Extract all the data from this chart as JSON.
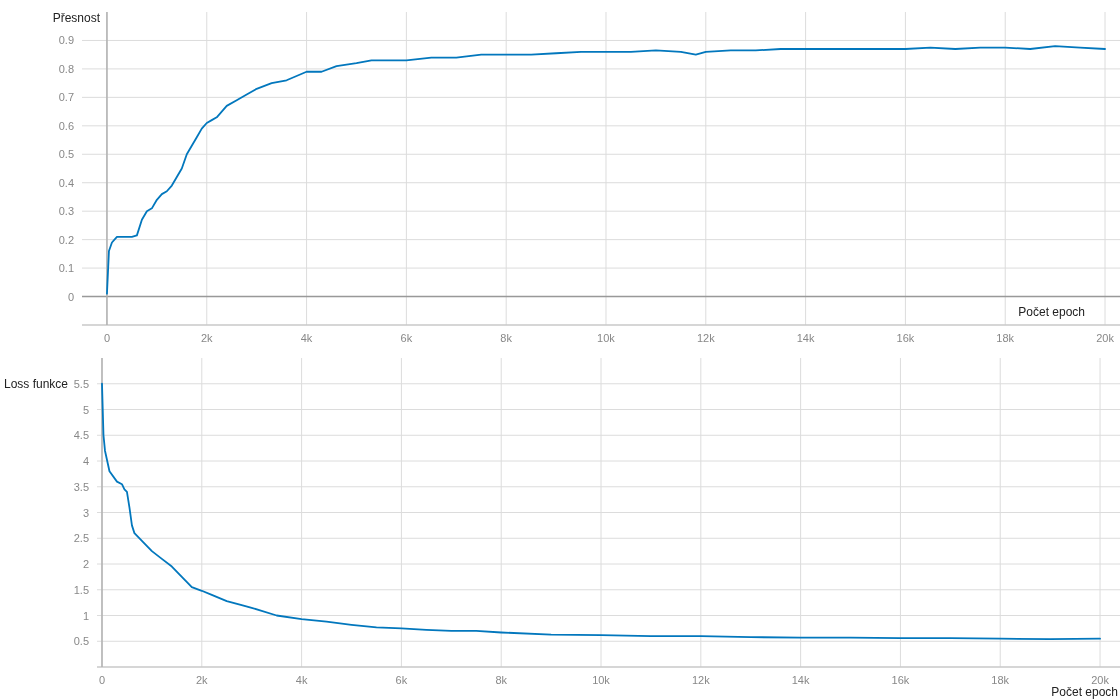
{
  "chart_data": [
    {
      "type": "line",
      "ylabel": "Přesnost",
      "xlabel": "Počet epoch",
      "xlim": [
        -500,
        20300
      ],
      "ylim": [
        -0.1,
        1.0
      ],
      "xticks": [
        0,
        {
          "value": 2000,
          "label": "2k"
        },
        {
          "value": 4000,
          "label": "4k"
        },
        {
          "value": 6000,
          "label": "6k"
        },
        {
          "value": 8000,
          "label": "8k"
        },
        {
          "value": 10000,
          "label": "10k"
        },
        {
          "value": 12000,
          "label": "12k"
        },
        {
          "value": 14000,
          "label": "14k"
        },
        {
          "value": 16000,
          "label": "16k"
        },
        {
          "value": 18000,
          "label": "18k"
        },
        {
          "value": 20000,
          "label": "20k"
        }
      ],
      "yticks": [
        0,
        0.1,
        0.2,
        0.3,
        0.4,
        0.5,
        0.6,
        0.7,
        0.8,
        0.9
      ],
      "grid": true,
      "marker": "none",
      "line_style": "solid",
      "series": [
        {
          "color": "#0277bd",
          "x": [
            0,
            40,
            100,
            200,
            300,
            400,
            500,
            600,
            700,
            800,
            900,
            1000,
            1100,
            1200,
            1300,
            1400,
            1500,
            1600,
            1700,
            1800,
            1900,
            2000,
            2100,
            2200,
            2400,
            2600,
            2800,
            3000,
            3300,
            3600,
            4000,
            4300,
            4600,
            5000,
            5300,
            5600,
            6000,
            6500,
            7000,
            7500,
            8000,
            8500,
            9000,
            9500,
            10000,
            10500,
            11000,
            11500,
            11800,
            12000,
            12500,
            13000,
            13500,
            14000,
            14500,
            15000,
            15500,
            16000,
            16500,
            17000,
            17500,
            18000,
            18500,
            19000,
            19500,
            20000
          ],
          "values": [
            0.01,
            0.16,
            0.19,
            0.21,
            0.21,
            0.21,
            0.21,
            0.215,
            0.27,
            0.3,
            0.31,
            0.34,
            0.36,
            0.37,
            0.39,
            0.42,
            0.45,
            0.5,
            0.53,
            0.56,
            0.59,
            0.61,
            0.62,
            0.63,
            0.67,
            0.69,
            0.71,
            0.73,
            0.75,
            0.76,
            0.79,
            0.79,
            0.81,
            0.82,
            0.83,
            0.83,
            0.83,
            0.84,
            0.84,
            0.85,
            0.85,
            0.85,
            0.855,
            0.86,
            0.86,
            0.86,
            0.865,
            0.86,
            0.85,
            0.86,
            0.865,
            0.865,
            0.87,
            0.87,
            0.87,
            0.87,
            0.87,
            0.87,
            0.875,
            0.87,
            0.875,
            0.875,
            0.87,
            0.88,
            0.875,
            0.87
          ]
        }
      ]
    },
    {
      "type": "line",
      "ylabel": "Loss funkce",
      "xlabel": "Počet epoch",
      "xlim": [
        -100,
        20400
      ],
      "ylim": [
        0,
        6
      ],
      "xticks": [
        0,
        {
          "value": 2000,
          "label": "2k"
        },
        {
          "value": 4000,
          "label": "4k"
        },
        {
          "value": 6000,
          "label": "6k"
        },
        {
          "value": 8000,
          "label": "8k"
        },
        {
          "value": 10000,
          "label": "10k"
        },
        {
          "value": 12000,
          "label": "12k"
        },
        {
          "value": 14000,
          "label": "14k"
        },
        {
          "value": 16000,
          "label": "16k"
        },
        {
          "value": 18000,
          "label": "18k"
        },
        {
          "value": 20000,
          "label": "20k"
        }
      ],
      "yticks": [
        0.5,
        1,
        1.5,
        2,
        2.5,
        3,
        3.5,
        4,
        4.5,
        5,
        5.5
      ],
      "grid": true,
      "marker": "none",
      "line_style": "solid",
      "series": [
        {
          "color": "#0277bd",
          "x": [
            0,
            30,
            60,
            150,
            300,
            400,
            450,
            500,
            550,
            600,
            650,
            800,
            1000,
            1200,
            1400,
            1600,
            1800,
            2000,
            2200,
            2500,
            2800,
            3000,
            3500,
            4000,
            4500,
            5000,
            5500,
            6000,
            6500,
            7000,
            7500,
            8000,
            9000,
            10000,
            11000,
            12000,
            13000,
            14000,
            15000,
            16000,
            17000,
            18000,
            19000,
            20000
          ],
          "values": [
            5.5,
            4.5,
            4.2,
            3.8,
            3.6,
            3.55,
            3.45,
            3.4,
            3.1,
            2.75,
            2.6,
            2.45,
            2.25,
            2.1,
            1.95,
            1.75,
            1.55,
            1.48,
            1.4,
            1.28,
            1.2,
            1.15,
            1.0,
            0.93,
            0.88,
            0.82,
            0.77,
            0.75,
            0.72,
            0.7,
            0.7,
            0.67,
            0.63,
            0.62,
            0.6,
            0.6,
            0.58,
            0.57,
            0.57,
            0.56,
            0.56,
            0.55,
            0.54,
            0.55
          ]
        }
      ]
    }
  ]
}
